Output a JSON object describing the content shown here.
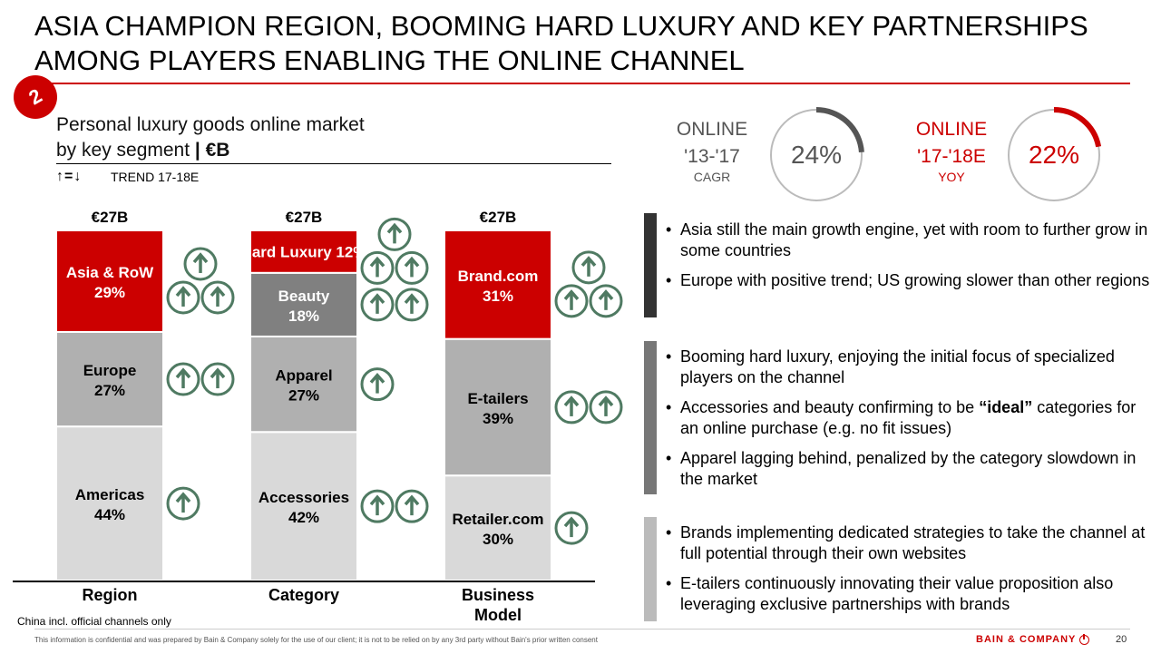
{
  "slide": {
    "title": "ASIA CHAMPION REGION, BOOMING HARD LUXURY AND KEY PARTNERSHIPS AMONG PLAYERS ENABLING THE ONLINE CHANNEL",
    "section_number": "2",
    "accent_color": "#cc0000"
  },
  "chart_header": {
    "title_line1": "Personal luxury goods online market",
    "title_line2": "by key segment",
    "unit": "| €B",
    "trend_symbols": "↑=↓",
    "trend_label": "TREND 17-18E"
  },
  "chart_data": {
    "type": "bar",
    "stacked": true,
    "percent_stacked": true,
    "categories": [
      "Region",
      "Category",
      "Business\nModel"
    ],
    "totals": [
      "€27B",
      "€27B",
      "€27B"
    ],
    "stacks": [
      {
        "category": "Region",
        "segments": [
          {
            "label": "Americas",
            "value": 44,
            "trend_arrows": 1
          },
          {
            "label": "Europe",
            "value": 27,
            "trend_arrows": 2
          },
          {
            "label": "Asia & RoW",
            "value": 29,
            "trend_arrows": 3
          }
        ]
      },
      {
        "category": "Category",
        "segments": [
          {
            "label": "Accessories",
            "value": 42,
            "trend_arrows": 2
          },
          {
            "label": "Apparel",
            "value": 27,
            "trend_arrows": 1
          },
          {
            "label": "Beauty",
            "value": 18,
            "trend_arrows": 2
          },
          {
            "label": "Hard Luxury",
            "value": 12,
            "trend_arrows": 3
          }
        ]
      },
      {
        "category": "Business\nModel",
        "segments": [
          {
            "label": "Retailer.com",
            "value": 30,
            "trend_arrows": 1
          },
          {
            "label": "E-tailers",
            "value": 39,
            "trend_arrows": 2
          },
          {
            "label": "Brand.com",
            "value": 31,
            "trend_arrows": 3
          }
        ]
      }
    ],
    "segment_colors": [
      "#d9d9d9",
      "#b0b0b0",
      "#cc0000"
    ],
    "category_segment_colors": [
      "#d9d9d9",
      "#b0b0b0",
      "#808080",
      "#cc0000"
    ],
    "arrow_color": "#4f7a62",
    "footnote": "China incl. official channels only"
  },
  "kpis": [
    {
      "label": "ONLINE",
      "period": "'13-'17",
      "metric": "CAGR",
      "value": "24%",
      "fraction": 0.24,
      "color": "#555555"
    },
    {
      "label": "ONLINE",
      "period": "'17-'18E",
      "metric": "YOY",
      "value": "22%",
      "fraction": 0.22,
      "color": "#cc0000"
    }
  ],
  "bullet_groups": [
    {
      "bar_color": "#333333",
      "bullets": [
        "Asia still the main growth engine, yet with room to further grow in some countries",
        "Europe with positive trend; US growing slower than other regions"
      ]
    },
    {
      "bar_color": "#777777",
      "bullets": [
        "Booming hard luxury, enjoying the initial focus of specialized players on the channel",
        "Accessories and beauty confirming to be “ideal” categories for an online purchase (e.g. no fit issues)",
        "Apparel lagging behind, penalized by the category slowdown in the market"
      ]
    },
    {
      "bar_color": "#bbbbbb",
      "bullets": [
        "Brands implementing dedicated strategies to take the channel at full potential through their own websites",
        "E-tailers continuously innovating their value proposition also leveraging exclusive partnerships with brands"
      ]
    }
  ],
  "footer": {
    "disclaimer": "This information is confidential and was prepared by Bain & Company solely for the use of our client; it is not to be relied on by any 3rd party without Bain's prior written consent",
    "brand": "BAIN & COMPANY",
    "page_number": "20"
  }
}
